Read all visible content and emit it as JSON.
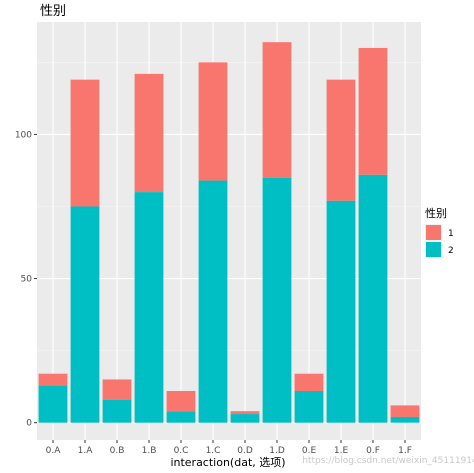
{
  "chart_data": {
    "type": "bar",
    "stacked": true,
    "title": "性别",
    "xlabel": "interaction(dat, 选项)",
    "ylabel": "",
    "categories": [
      "0.A",
      "1.A",
      "0.B",
      "1.B",
      "0.C",
      "1.C",
      "0.D",
      "1.D",
      "0.E",
      "1.E",
      "0.F",
      "1.F"
    ],
    "series": [
      {
        "name": "2",
        "color": "#00bfc4",
        "values": [
          13,
          75,
          8,
          80,
          4,
          84,
          3,
          85,
          11,
          77,
          86,
          2
        ]
      },
      {
        "name": "1",
        "color": "#f8766d",
        "values": [
          4,
          44,
          7,
          41,
          7,
          41,
          1,
          47,
          6,
          42,
          44,
          4
        ]
      }
    ],
    "ylim": [
      -6,
      139
    ],
    "yticks": [
      0,
      50,
      100
    ],
    "grid": true,
    "legend": {
      "title": "性别",
      "position": "right",
      "order": [
        "1",
        "2"
      ]
    }
  },
  "watermark": "https://blog.csdn.net/weixin_45111914"
}
